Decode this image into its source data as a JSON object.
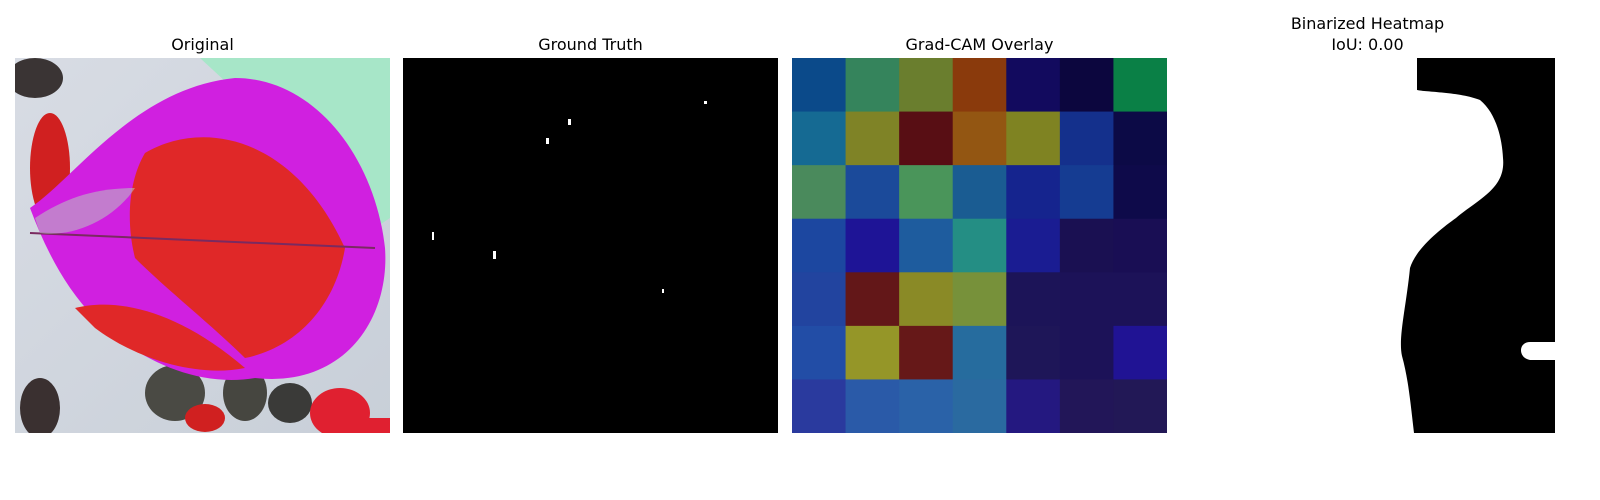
{
  "panels": [
    {
      "title": "Original"
    },
    {
      "title": "Ground Truth"
    },
    {
      "title": "Grad-CAM Overlay"
    },
    {
      "title": "Binarized Heatmap",
      "subtitle": "IoU: 0.00"
    }
  ],
  "gradcam": {
    "grid_rows": 7,
    "grid_cols": 7,
    "cells": [
      [
        "#0b4a8a",
        "#35845c",
        "#6a7e2e",
        "#8a3a0c",
        "#120a5e",
        "#0c063e",
        "#0a8046"
      ],
      [
        "#156a93",
        "#7f8326",
        "#580e14",
        "#935612",
        "#7f8322",
        "#14308c",
        "#0c0a46"
      ],
      [
        "#4a8a5c",
        "#1b4a9a",
        "#4a955a",
        "#1a5c92",
        "#15248e",
        "#153c92",
        "#0e0a4a"
      ],
      [
        "#1c47a0",
        "#1e1496",
        "#1e5c9e",
        "#248e84",
        "#1a1c92",
        "#1a1052",
        "#190e54"
      ],
      [
        "#22449f",
        "#631718",
        "#8a8a26",
        "#77913a",
        "#1c1458",
        "#1c1258",
        "#1c1258"
      ],
      [
        "#224da6",
        "#959628",
        "#661818",
        "#266c9e",
        "#1e1658",
        "#1c1258",
        "#201394"
      ],
      [
        "#2a3a9e",
        "#2a5aa8",
        "#2a62a8",
        "#2a6aa0",
        "#241880",
        "#221658",
        "#221856"
      ]
    ]
  }
}
